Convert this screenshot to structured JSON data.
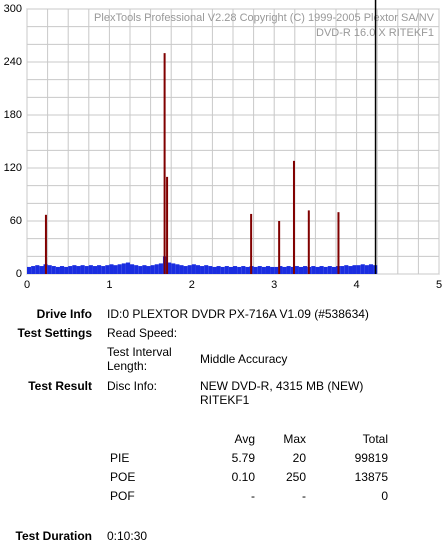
{
  "chart_data": {
    "type": "bar",
    "title": "PlexTools Professional V2.28 Copyright (C) 1999-2005 Plextor SA/NV",
    "subtitle": "DVD-R   16.0 X   RITEKF1",
    "xlim": [
      0,
      5
    ],
    "ylim": [
      0,
      300
    ],
    "xticks": [
      0,
      1,
      2,
      3,
      4,
      5
    ],
    "yticks": [
      0,
      60,
      120,
      180,
      240,
      300
    ],
    "grid": true,
    "minor_xticks": [
      0,
      0.25,
      0.5,
      0.75,
      1,
      1.25,
      1.5,
      1.75,
      2,
      2.25,
      2.5,
      2.75,
      3,
      3.25,
      3.5,
      3.75,
      4,
      4.25,
      4.5,
      4.75,
      5
    ],
    "minor_yticks": [
      0,
      20,
      40,
      60,
      80,
      100,
      120,
      140,
      160,
      180,
      200,
      220,
      240,
      260,
      280,
      300
    ],
    "end_marker": 4.23,
    "series": [
      {
        "name": "PIE",
        "color": "#1a2de0",
        "x": [
          0,
          0.05,
          0.1,
          0.15,
          0.2,
          0.25,
          0.3,
          0.35,
          0.4,
          0.45,
          0.5,
          0.55,
          0.6,
          0.65,
          0.7,
          0.75,
          0.8,
          0.85,
          0.9,
          0.95,
          1,
          1.05,
          1.1,
          1.15,
          1.2,
          1.25,
          1.3,
          1.35,
          1.4,
          1.45,
          1.5,
          1.55,
          1.6,
          1.65,
          1.7,
          1.75,
          1.8,
          1.85,
          1.9,
          1.95,
          2,
          2.05,
          2.1,
          2.15,
          2.2,
          2.25,
          2.3,
          2.35,
          2.4,
          2.45,
          2.5,
          2.55,
          2.6,
          2.65,
          2.7,
          2.75,
          2.8,
          2.85,
          2.9,
          2.95,
          3,
          3.05,
          3.1,
          3.15,
          3.2,
          3.25,
          3.3,
          3.35,
          3.4,
          3.45,
          3.5,
          3.55,
          3.6,
          3.65,
          3.7,
          3.75,
          3.8,
          3.85,
          3.9,
          3.95,
          4,
          4.05,
          4.1,
          4.15,
          4.2
        ],
        "values": [
          8,
          9,
          10,
          9,
          11,
          10,
          9,
          8,
          9,
          8,
          9,
          10,
          9,
          10,
          9,
          10,
          9,
          10,
          9,
          10,
          11,
          10,
          11,
          12,
          13,
          11,
          10,
          9,
          10,
          9,
          10,
          11,
          12,
          20,
          13,
          12,
          11,
          10,
          9,
          10,
          11,
          10,
          9,
          10,
          9,
          8,
          9,
          8,
          9,
          8,
          9,
          8,
          9,
          8,
          9,
          8,
          9,
          8,
          9,
          8,
          8,
          9,
          8,
          9,
          8,
          9,
          8,
          9,
          8,
          9,
          8,
          9,
          8,
          9,
          8,
          9,
          9,
          10,
          9,
          10,
          10,
          11,
          10,
          11,
          10
        ]
      },
      {
        "name": "POE",
        "color": "#800000",
        "x": [
          0.23,
          1.67,
          1.7,
          2.72,
          3.06,
          3.24,
          3.42,
          3.78
        ],
        "values": [
          67,
          250,
          110,
          68,
          60,
          128,
          72,
          70
        ]
      }
    ]
  },
  "report": {
    "drive_info": {
      "label": "Drive Info",
      "value": "ID:0 PLEXTOR DVDR PX-716A V1.09 (#538634)"
    },
    "test_settings": {
      "label": "Test Settings",
      "read_speed": "Read Speed:",
      "interval_label": "Test Interval Length:",
      "interval_value": "Middle Accuracy"
    },
    "test_result": {
      "label": "Test Result",
      "disc_info_label": "Disc Info:",
      "disc_info_value": "NEW DVD-R, 4315 MB (NEW) RITEKF1"
    },
    "stats": {
      "header": [
        "Avg",
        "Max",
        "Total"
      ],
      "rows": [
        [
          "PIE",
          "5.79",
          "20",
          "99819"
        ],
        [
          "POE",
          "0.10",
          "250",
          "13875"
        ],
        [
          "POF",
          "-",
          "-",
          "0"
        ]
      ]
    },
    "test_duration": {
      "label": "Test Duration",
      "value": "0:10:30"
    }
  }
}
